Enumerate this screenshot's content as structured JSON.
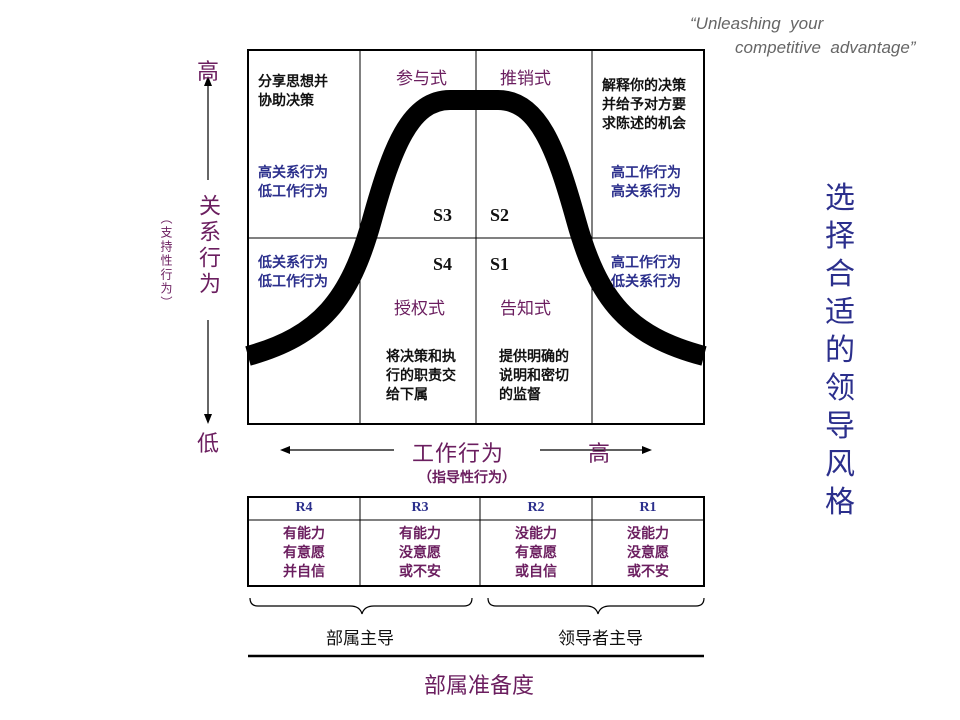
{
  "tagline": {
    "line1": "“Unleashing  your",
    "line2": "competitive  advantage”"
  },
  "y_axis": {
    "high": "高",
    "low": "低",
    "title": "关系行为",
    "subtitle": "（支持性行为）"
  },
  "x_axis": {
    "title": "工作行为",
    "high": "高",
    "subtitle": "（指导性行为）"
  },
  "side_title": "选择合适的领导风格",
  "quadrants": {
    "s3": {
      "style": "参与式",
      "code": "S3"
    },
    "s2": {
      "style": "推销式",
      "code": "S2"
    },
    "s4": {
      "style": "授权式",
      "code": "S4"
    },
    "s1": {
      "style": "告知式",
      "code": "S1"
    }
  },
  "cells": {
    "top_left_desc": "分享思想并\n协助决策",
    "top_left_behavior": "高关系行为\n低工作行为",
    "top_right_desc": "解释你的决策\n并给予对方要\n求陈述的机会",
    "top_right_behavior": "高工作行为\n高关系行为",
    "bottom_left_behavior": "低关系行为\n低工作行为",
    "bottom_right_behavior": "高工作行为\n低关系行为",
    "bottom_mid_left_desc": "将决策和执\n行的职责交\n给下属",
    "bottom_mid_right_desc": "提供明确的\n说明和密切\n的监督"
  },
  "readiness_table": {
    "headers": [
      "R4",
      "R3",
      "R2",
      "R1"
    ],
    "rows": [
      "有能力\n有意愿\n并自信",
      "有能力\n没意愿\n或不安",
      "没能力\n有意愿\n或自信",
      "没能力\n没意愿\n或不安"
    ]
  },
  "braces": {
    "left": "部属主导",
    "right": "领导者主导"
  },
  "footer_title": "部属准备度",
  "colors": {
    "purple": "#6b1e5f",
    "navy": "#2b2f8c",
    "curve": "#000000"
  }
}
